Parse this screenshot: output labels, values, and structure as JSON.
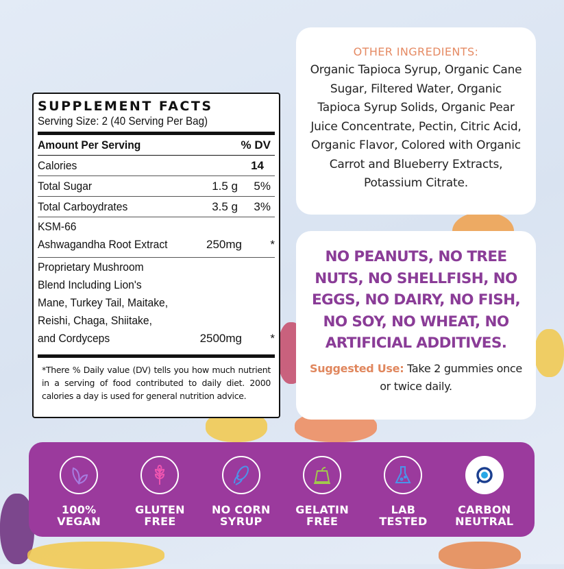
{
  "supplement_facts": {
    "title": "SUPPLEMENT FACTS",
    "serving": "Serving Size: 2  (40 Serving Per Bag)",
    "header": {
      "name": "Amount Per Serving",
      "dv": "% DV"
    },
    "rows": [
      {
        "name": "Calories",
        "amount": "",
        "dv": "14"
      },
      {
        "name": "Total Sugar",
        "amount": "1.5 g",
        "dv": "5%"
      },
      {
        "name": "Total Carboydrates",
        "amount": "3.5 g",
        "dv": "3%"
      },
      {
        "name_line1": "KSM-66",
        "name": "Ashwagandha Root Extract",
        "amount": "250mg",
        "dv": "*"
      },
      {
        "name_lines": [
          "Proprietary Mushroom",
          "Blend Including Lion's",
          "Mane, Turkey Tail, Maitake,",
          "Reishi, Chaga, Shiitake,"
        ],
        "name": "and Cordyceps",
        "amount": "2500mg",
        "dv": "*"
      }
    ],
    "footnote": "*There % Daily value (DV) tells you how much nutrient in a serving of food contributed to daily diet. 2000 calories a day is used for general nutrition advice."
  },
  "other_ingredients": {
    "title": "OTHER INGREDIENTS:",
    "text": "Organic Tapioca Syrup, Organic Cane Sugar, Filtered Water, Organic Tapioca Syrup Solids, Organic Pear Juice Concentrate, Pectin, Citric Acid, Organic Flavor, Colored with Organic Carrot and Blueberry Extracts, Potassium Citrate."
  },
  "allergens": {
    "text": "NO PEANUTS, NO TREE NUTS, NO SHELLFISH, NO EGGS, NO DAIRY, NO FISH, NO SOY, NO WHEAT, NO ARTIFICIAL ADDITIVES.",
    "suggested_label": "Suggested Use:",
    "suggested_text": " Take 2 gummies once or twice daily."
  },
  "badges": [
    {
      "icon": "leaf-icon",
      "line1": "100%",
      "line2": "VEGAN",
      "color": "#9b6fd6"
    },
    {
      "icon": "wheat-icon",
      "line1": "GLUTEN",
      "line2": "FREE",
      "color": "#e64fa8"
    },
    {
      "icon": "corn-icon",
      "line1": "NO CORN",
      "line2": "SYRUP",
      "color": "#4a8fe0"
    },
    {
      "icon": "gelatin-icon",
      "line1": "GELATIN",
      "line2": "FREE",
      "color": "#9bc24a"
    },
    {
      "icon": "flask-icon",
      "line1": "LAB",
      "line2": "TESTED",
      "color": "#4a8fe0"
    },
    {
      "icon": "carbon-neutral-icon",
      "line1": "CARBON",
      "line2": "NEUTRAL",
      "color": "#1b3f8f"
    }
  ],
  "colors": {
    "brand_purple": "#9b3a9d",
    "allergen_text": "#8a3c97",
    "accent_orange": "#e58a63"
  }
}
